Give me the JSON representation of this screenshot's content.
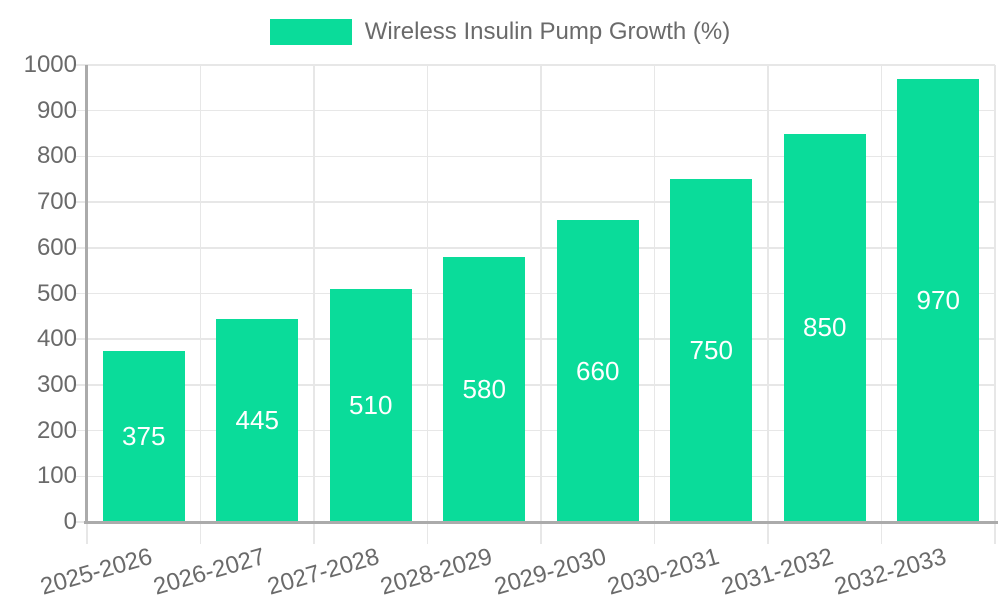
{
  "legend": {
    "label": "Wireless Insulin Pump Growth (%)"
  },
  "colors": {
    "bar": "#0adc9a",
    "grid": "#e7e7e7",
    "axis": "#ababab",
    "tick_text": "#6a6a6a",
    "bar_label": "#ffffff",
    "background": "#ffffff"
  },
  "chart_data": {
    "type": "bar",
    "title": "Wireless Insulin Pump Growth (%)",
    "categories": [
      "2025-2026",
      "2026-2027",
      "2027-2028",
      "2028-2029",
      "2029-2030",
      "2030-2031",
      "2031-2032",
      "2032-2033"
    ],
    "values": [
      375,
      445,
      510,
      580,
      660,
      750,
      850,
      970
    ],
    "xlabel": "",
    "ylabel": "",
    "ylim": [
      0,
      1000
    ],
    "ytick_step": 100,
    "ytick_labels": [
      "0",
      "100",
      "200",
      "300",
      "400",
      "500",
      "600",
      "700",
      "800",
      "900",
      "1000"
    ],
    "grid": true,
    "legend_position": "top",
    "value_label_position": "inside-center",
    "x_label_rotation_deg": -16
  }
}
